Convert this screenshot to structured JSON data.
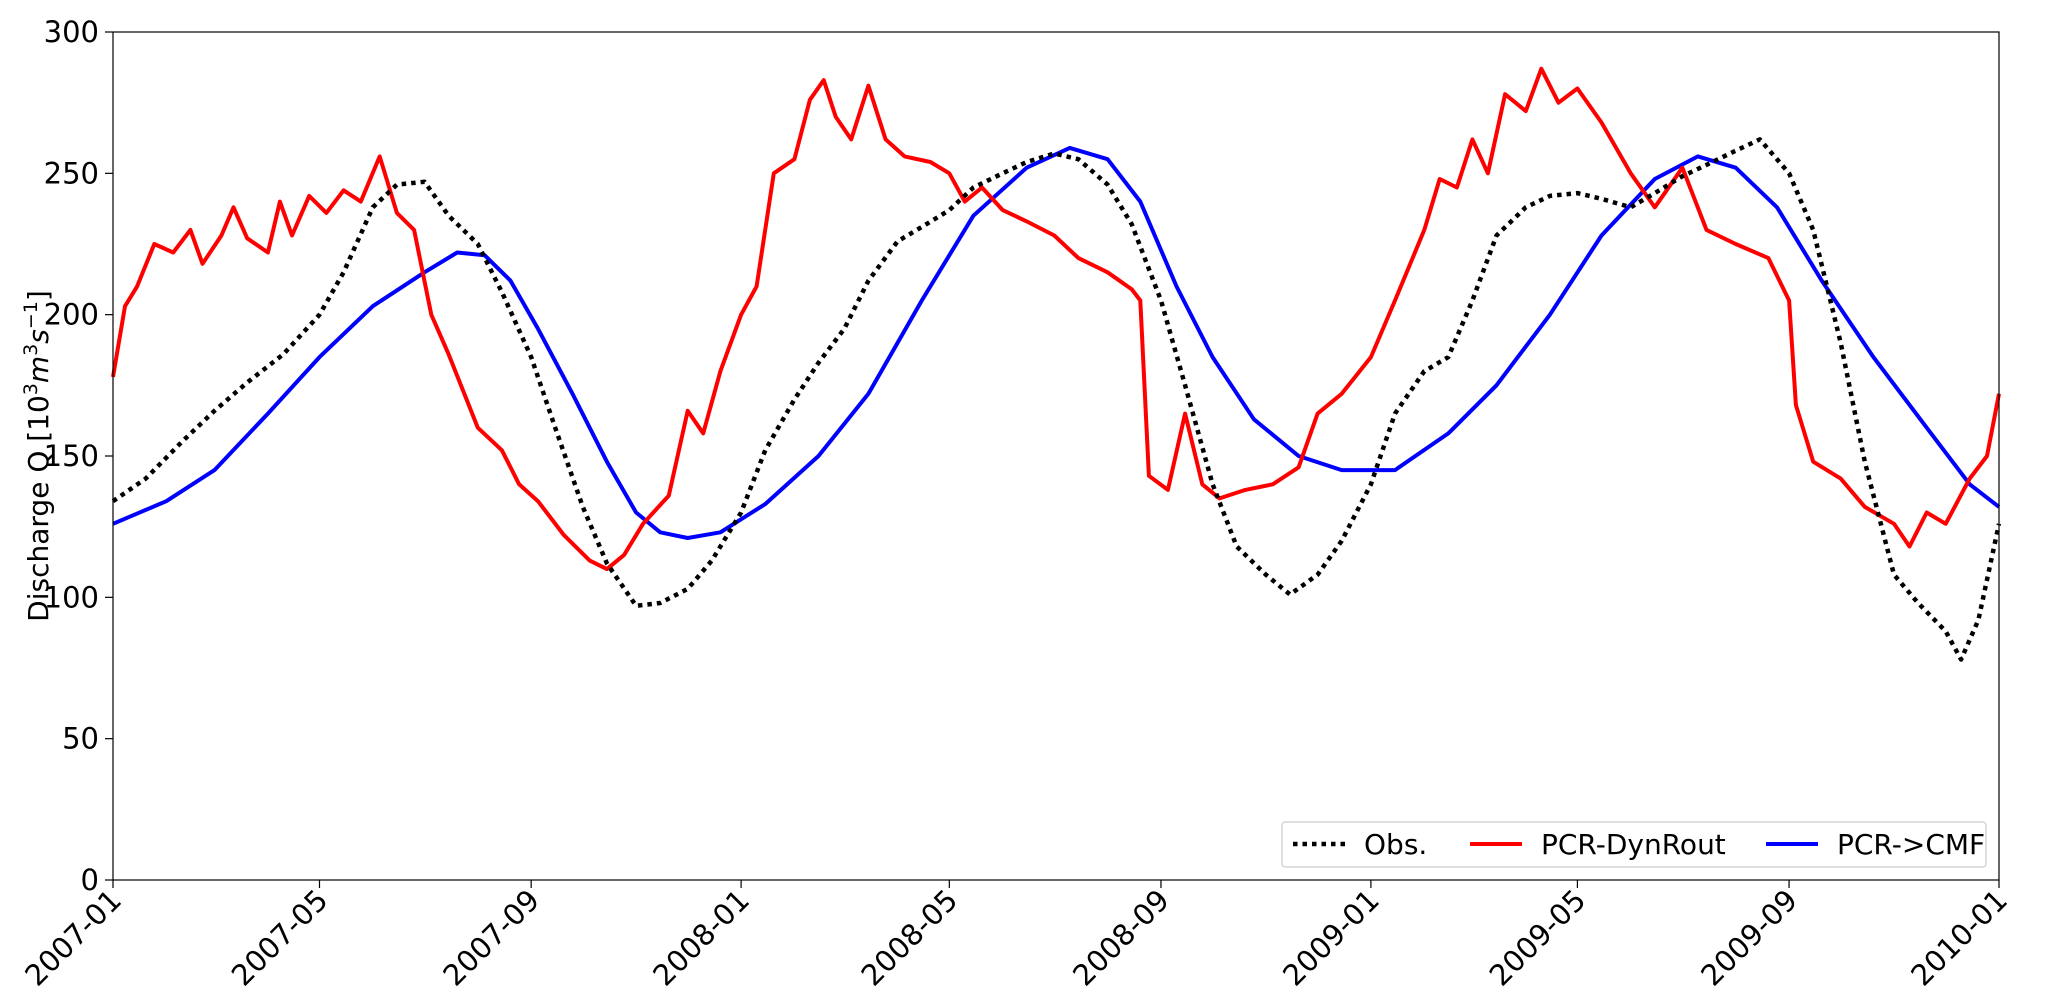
{
  "chart_data": {
    "type": "line",
    "title": "",
    "xlabel": "",
    "ylabel_main": "Discharge Q [10",
    "ylabel_sup1": "3",
    "ylabel_m": "m",
    "ylabel_sup2": "3",
    "ylabel_s": "s",
    "ylabel_sup3": "−1",
    "ylabel_end": "]",
    "ylim": [
      0,
      300
    ],
    "xlim": [
      "2007-01-01",
      "2010-01-01"
    ],
    "y_ticks": [
      0,
      50,
      100,
      150,
      200,
      250,
      300
    ],
    "x_ticks": [
      "2007-01",
      "2007-05",
      "2007-09",
      "2008-01",
      "2008-05",
      "2008-09",
      "2009-01",
      "2009-05",
      "2009-09",
      "2010-01"
    ],
    "grid": false,
    "legend_position": "lower-right",
    "series": [
      {
        "name": "Obs.",
        "color": "#000000",
        "style": "dotted",
        "points": [
          [
            "2007-01-01",
            134
          ],
          [
            "2007-01-20",
            142
          ],
          [
            "2007-02-10",
            155
          ],
          [
            "2007-03-01",
            166
          ],
          [
            "2007-03-20",
            176
          ],
          [
            "2007-04-10",
            186
          ],
          [
            "2007-05-01",
            200
          ],
          [
            "2007-05-15",
            215
          ],
          [
            "2007-06-01",
            238
          ],
          [
            "2007-06-15",
            246
          ],
          [
            "2007-07-01",
            247
          ],
          [
            "2007-07-15",
            235
          ],
          [
            "2007-08-01",
            225
          ],
          [
            "2007-08-15",
            208
          ],
          [
            "2007-09-01",
            185
          ],
          [
            "2007-09-15",
            160
          ],
          [
            "2007-10-01",
            132
          ],
          [
            "2007-10-15",
            112
          ],
          [
            "2007-11-01",
            97
          ],
          [
            "2007-11-15",
            98
          ],
          [
            "2007-12-01",
            103
          ],
          [
            "2007-12-15",
            113
          ],
          [
            "2008-01-01",
            130
          ],
          [
            "2008-01-15",
            152
          ],
          [
            "2008-02-01",
            170
          ],
          [
            "2008-02-15",
            183
          ],
          [
            "2008-03-01",
            195
          ],
          [
            "2008-03-15",
            212
          ],
          [
            "2008-04-01",
            226
          ],
          [
            "2008-04-15",
            231
          ],
          [
            "2008-05-01",
            237
          ],
          [
            "2008-05-15",
            245
          ],
          [
            "2008-06-01",
            250
          ],
          [
            "2008-06-15",
            254
          ],
          [
            "2008-07-01",
            257
          ],
          [
            "2008-07-15",
            255
          ],
          [
            "2008-08-01",
            246
          ],
          [
            "2008-08-15",
            232
          ],
          [
            "2008-09-01",
            205
          ],
          [
            "2008-09-15",
            175
          ],
          [
            "2008-10-01",
            140
          ],
          [
            "2008-10-15",
            118
          ],
          [
            "2008-11-01",
            108
          ],
          [
            "2008-11-15",
            101
          ],
          [
            "2008-12-01",
            108
          ],
          [
            "2008-12-15",
            120
          ],
          [
            "2009-01-01",
            140
          ],
          [
            "2009-01-15",
            165
          ],
          [
            "2009-02-01",
            180
          ],
          [
            "2009-02-15",
            185
          ],
          [
            "2009-03-01",
            205
          ],
          [
            "2009-03-15",
            228
          ],
          [
            "2009-04-01",
            238
          ],
          [
            "2009-04-15",
            242
          ],
          [
            "2009-05-01",
            243
          ],
          [
            "2009-05-15",
            241
          ],
          [
            "2009-06-01",
            238
          ],
          [
            "2009-06-15",
            243
          ],
          [
            "2009-07-01",
            249
          ],
          [
            "2009-07-15",
            253
          ],
          [
            "2009-08-01",
            258
          ],
          [
            "2009-08-15",
            262
          ],
          [
            "2009-09-01",
            250
          ],
          [
            "2009-09-15",
            230
          ],
          [
            "2009-10-01",
            190
          ],
          [
            "2009-10-15",
            148
          ],
          [
            "2009-11-01",
            108
          ],
          [
            "2009-11-15",
            98
          ],
          [
            "2009-12-01",
            88
          ],
          [
            "2009-12-10",
            78
          ],
          [
            "2009-12-20",
            92
          ],
          [
            "2010-01-01",
            126
          ]
        ]
      },
      {
        "name": "PCR-DynRout",
        "color": "#ff0000",
        "style": "solid",
        "points": [
          [
            "2007-01-01",
            178
          ],
          [
            "2007-01-08",
            203
          ],
          [
            "2007-01-15",
            210
          ],
          [
            "2007-01-25",
            225
          ],
          [
            "2007-02-05",
            222
          ],
          [
            "2007-02-15",
            230
          ],
          [
            "2007-02-22",
            218
          ],
          [
            "2007-03-05",
            228
          ],
          [
            "2007-03-12",
            238
          ],
          [
            "2007-03-20",
            227
          ],
          [
            "2007-04-01",
            222
          ],
          [
            "2007-04-08",
            240
          ],
          [
            "2007-04-15",
            228
          ],
          [
            "2007-04-25",
            242
          ],
          [
            "2007-05-05",
            236
          ],
          [
            "2007-05-15",
            244
          ],
          [
            "2007-05-25",
            240
          ],
          [
            "2007-06-05",
            256
          ],
          [
            "2007-06-15",
            236
          ],
          [
            "2007-06-25",
            230
          ],
          [
            "2007-07-05",
            200
          ],
          [
            "2007-07-15",
            186
          ],
          [
            "2007-08-01",
            160
          ],
          [
            "2007-08-15",
            152
          ],
          [
            "2007-08-25",
            140
          ],
          [
            "2007-09-05",
            134
          ],
          [
            "2007-09-20",
            122
          ],
          [
            "2007-10-05",
            113
          ],
          [
            "2007-10-15",
            110
          ],
          [
            "2007-10-25",
            115
          ],
          [
            "2007-11-05",
            126
          ],
          [
            "2007-11-20",
            136
          ],
          [
            "2007-12-01",
            166
          ],
          [
            "2007-12-10",
            158
          ],
          [
            "2007-12-20",
            180
          ],
          [
            "2008-01-01",
            200
          ],
          [
            "2008-01-10",
            210
          ],
          [
            "2008-01-20",
            250
          ],
          [
            "2008-02-01",
            255
          ],
          [
            "2008-02-10",
            276
          ],
          [
            "2008-02-18",
            283
          ],
          [
            "2008-02-25",
            270
          ],
          [
            "2008-03-05",
            262
          ],
          [
            "2008-03-15",
            281
          ],
          [
            "2008-03-25",
            262
          ],
          [
            "2008-04-05",
            256
          ],
          [
            "2008-04-20",
            254
          ],
          [
            "2008-05-01",
            250
          ],
          [
            "2008-05-10",
            240
          ],
          [
            "2008-05-20",
            245
          ],
          [
            "2008-06-01",
            237
          ],
          [
            "2008-06-15",
            233
          ],
          [
            "2008-07-01",
            228
          ],
          [
            "2008-07-15",
            220
          ],
          [
            "2008-08-01",
            215
          ],
          [
            "2008-08-15",
            209
          ],
          [
            "2008-08-20",
            205
          ],
          [
            "2008-08-25",
            143
          ],
          [
            "2008-09-05",
            138
          ],
          [
            "2008-09-15",
            165
          ],
          [
            "2008-09-25",
            140
          ],
          [
            "2008-10-05",
            135
          ],
          [
            "2008-10-20",
            138
          ],
          [
            "2008-11-05",
            140
          ],
          [
            "2008-11-20",
            146
          ],
          [
            "2008-12-01",
            165
          ],
          [
            "2008-12-15",
            172
          ],
          [
            "2009-01-01",
            185
          ],
          [
            "2009-01-15",
            205
          ],
          [
            "2009-02-01",
            230
          ],
          [
            "2009-02-10",
            248
          ],
          [
            "2009-02-20",
            245
          ],
          [
            "2009-03-01",
            262
          ],
          [
            "2009-03-10",
            250
          ],
          [
            "2009-03-20",
            278
          ],
          [
            "2009-04-01",
            272
          ],
          [
            "2009-04-10",
            287
          ],
          [
            "2009-04-20",
            275
          ],
          [
            "2009-05-01",
            280
          ],
          [
            "2009-05-15",
            268
          ],
          [
            "2009-06-01",
            250
          ],
          [
            "2009-06-15",
            238
          ],
          [
            "2009-07-01",
            252
          ],
          [
            "2009-07-15",
            230
          ],
          [
            "2009-08-01",
            225
          ],
          [
            "2009-08-20",
            220
          ],
          [
            "2009-09-01",
            205
          ],
          [
            "2009-09-05",
            168
          ],
          [
            "2009-09-15",
            148
          ],
          [
            "2009-10-01",
            142
          ],
          [
            "2009-10-15",
            132
          ],
          [
            "2009-11-01",
            126
          ],
          [
            "2009-11-10",
            118
          ],
          [
            "2009-11-20",
            130
          ],
          [
            "2009-12-01",
            126
          ],
          [
            "2009-12-15",
            142
          ],
          [
            "2009-12-25",
            150
          ],
          [
            "2010-01-01",
            172
          ]
        ]
      },
      {
        "name": "PCR->CMF",
        "color": "#0000ff",
        "style": "solid",
        "points": [
          [
            "2007-01-01",
            126
          ],
          [
            "2007-02-01",
            134
          ],
          [
            "2007-03-01",
            145
          ],
          [
            "2007-04-01",
            165
          ],
          [
            "2007-05-01",
            185
          ],
          [
            "2007-06-01",
            203
          ],
          [
            "2007-07-01",
            215
          ],
          [
            "2007-07-20",
            222
          ],
          [
            "2007-08-05",
            221
          ],
          [
            "2007-08-20",
            212
          ],
          [
            "2007-09-05",
            195
          ],
          [
            "2007-09-25",
            172
          ],
          [
            "2007-10-15",
            148
          ],
          [
            "2007-11-01",
            130
          ],
          [
            "2007-11-15",
            123
          ],
          [
            "2007-12-01",
            121
          ],
          [
            "2007-12-20",
            123
          ],
          [
            "2008-01-15",
            133
          ],
          [
            "2008-02-15",
            150
          ],
          [
            "2008-03-15",
            172
          ],
          [
            "2008-04-15",
            205
          ],
          [
            "2008-05-15",
            235
          ],
          [
            "2008-06-15",
            252
          ],
          [
            "2008-07-10",
            259
          ],
          [
            "2008-08-01",
            255
          ],
          [
            "2008-08-20",
            240
          ],
          [
            "2008-09-10",
            210
          ],
          [
            "2008-10-01",
            185
          ],
          [
            "2008-10-25",
            163
          ],
          [
            "2008-11-20",
            150
          ],
          [
            "2008-12-15",
            145
          ],
          [
            "2009-01-15",
            145
          ],
          [
            "2009-02-15",
            158
          ],
          [
            "2009-03-15",
            175
          ],
          [
            "2009-04-15",
            200
          ],
          [
            "2009-05-15",
            228
          ],
          [
            "2009-06-15",
            248
          ],
          [
            "2009-07-10",
            256
          ],
          [
            "2009-08-01",
            252
          ],
          [
            "2009-08-25",
            238
          ],
          [
            "2009-09-20",
            212
          ],
          [
            "2009-10-20",
            185
          ],
          [
            "2009-11-20",
            160
          ],
          [
            "2009-12-15",
            140
          ],
          [
            "2010-01-01",
            132
          ]
        ]
      }
    ]
  }
}
